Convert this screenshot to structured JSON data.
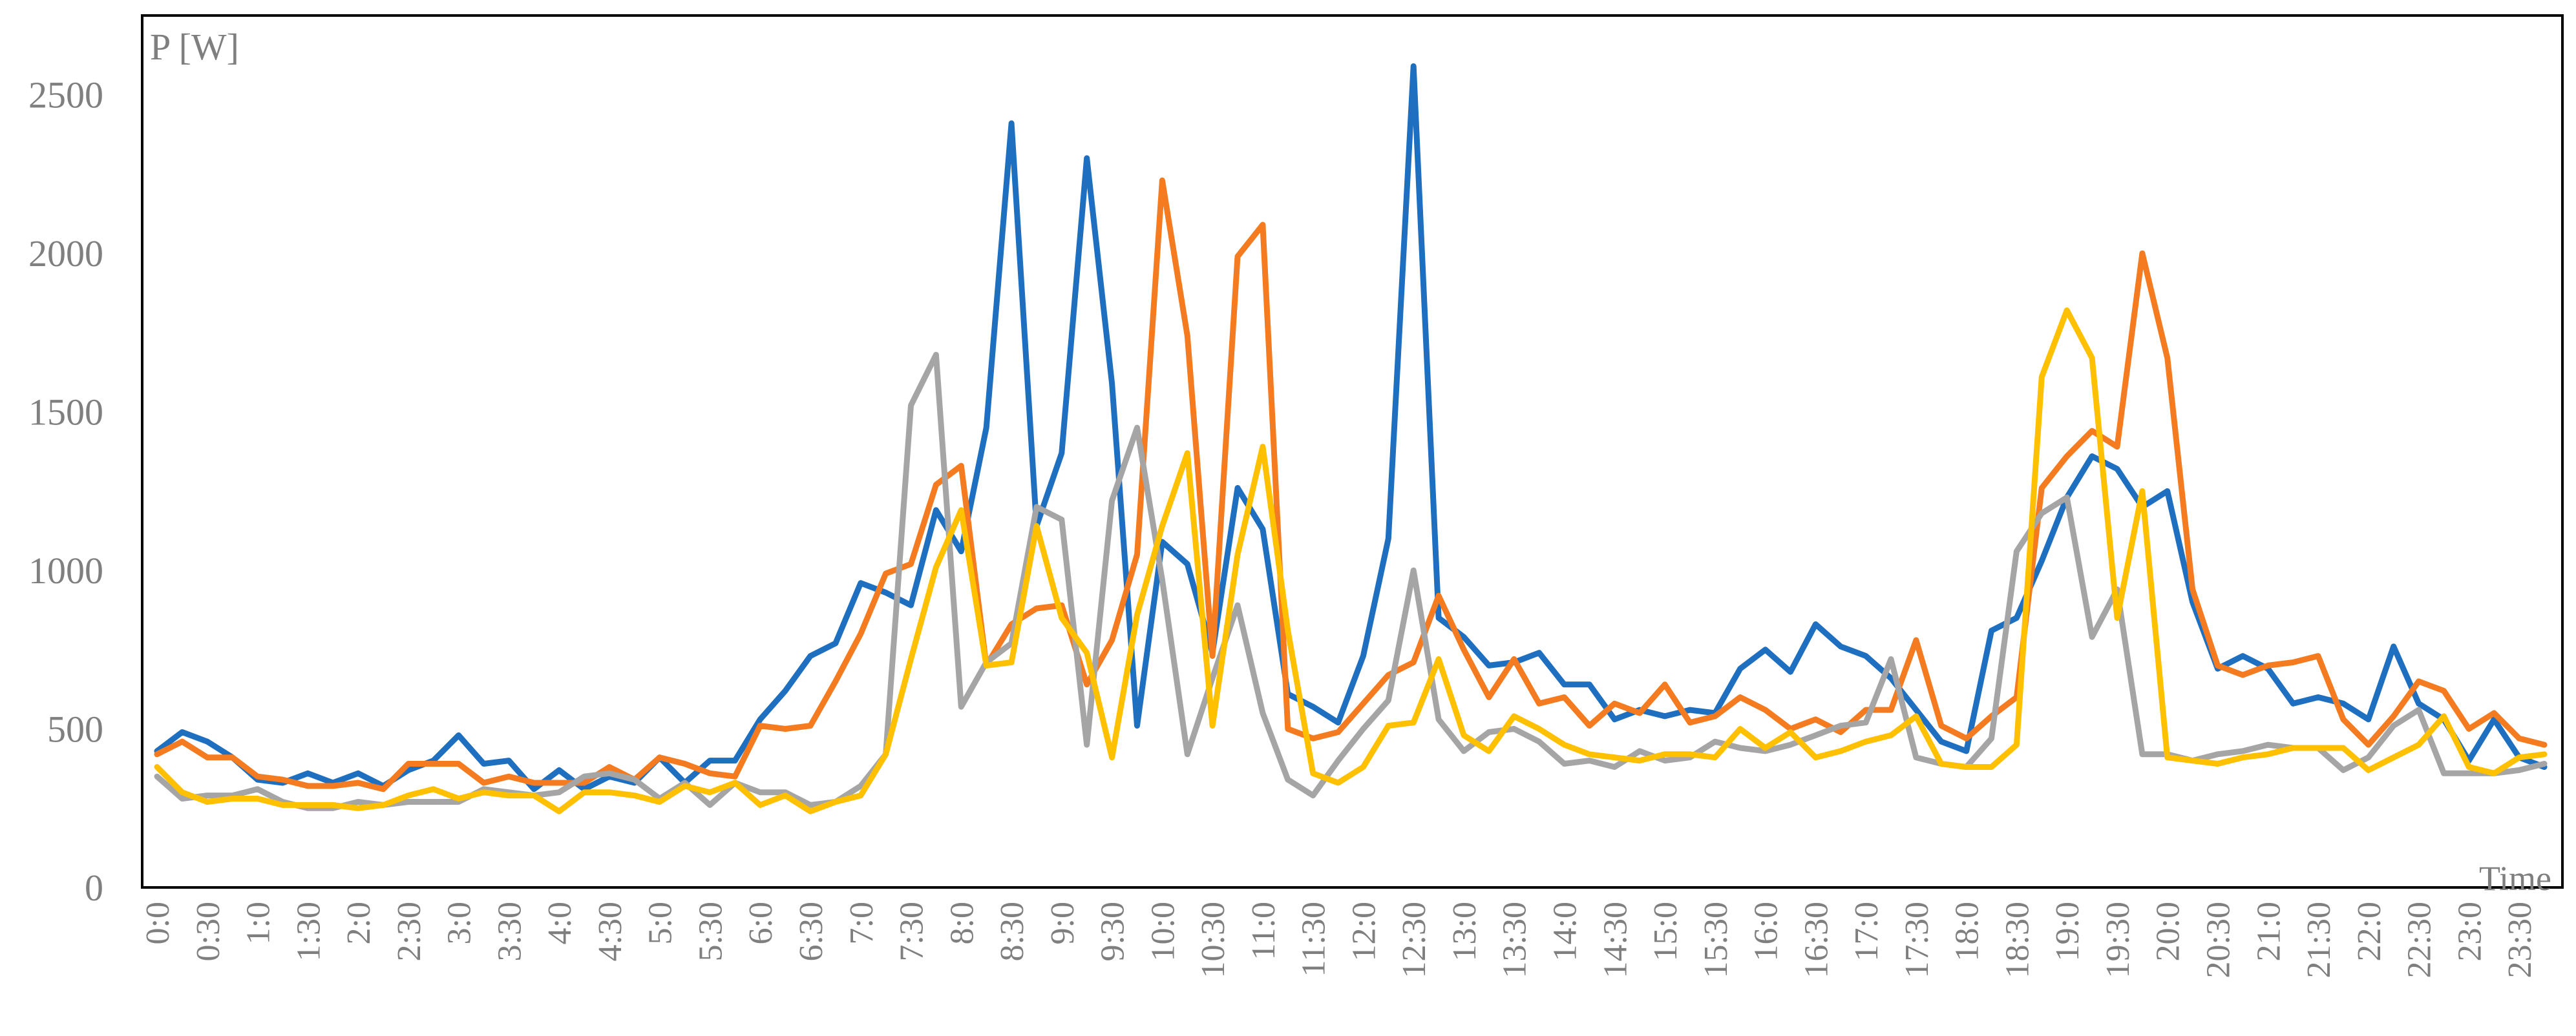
{
  "chart_data": {
    "type": "line",
    "title": "",
    "ylabel": "P [W]",
    "xlabel": "Time",
    "ylim": [
      0,
      2750
    ],
    "yticks": [
      0,
      500,
      1000,
      1500,
      2000,
      2500
    ],
    "grid": false,
    "legend": "none",
    "x": [
      "0:0",
      "0:15",
      "0:30",
      "0:45",
      "1:0",
      "1:15",
      "1:30",
      "1:45",
      "2:0",
      "2:15",
      "2:30",
      "2:45",
      "3:0",
      "3:15",
      "3:30",
      "3:45",
      "4:0",
      "4:15",
      "4:30",
      "4:45",
      "5:0",
      "5:15",
      "5:30",
      "5:45",
      "6:0",
      "6:15",
      "6:30",
      "6:45",
      "7:0",
      "7:15",
      "7:30",
      "7:45",
      "8:0",
      "8:15",
      "8:30",
      "8:45",
      "9:0",
      "9:15",
      "9:30",
      "9:45",
      "10:0",
      "10:15",
      "10:30",
      "10:45",
      "11:0",
      "11:15",
      "11:30",
      "11:45",
      "12:0",
      "12:15",
      "12:30",
      "12:45",
      "13:0",
      "13:15",
      "13:30",
      "13:45",
      "14:0",
      "14:15",
      "14:30",
      "14:45",
      "15:0",
      "15:15",
      "15:30",
      "15:45",
      "16:0",
      "16:15",
      "16:30",
      "16:45",
      "17:0",
      "17:15",
      "17:30",
      "17:45",
      "18:0",
      "18:15",
      "18:30",
      "18:45",
      "19:0",
      "19:15",
      "19:30",
      "19:45",
      "20:0",
      "20:15",
      "20:30",
      "20:45",
      "21:0",
      "21:15",
      "21:30",
      "21:45",
      "22:0",
      "22:15",
      "22:30",
      "22:45",
      "23:0",
      "23:15",
      "23:30",
      "23:45"
    ],
    "xtick_labels": [
      "0:0",
      "0:30",
      "1:0",
      "1:30",
      "2:0",
      "2:30",
      "3:0",
      "3:30",
      "4:0",
      "4:30",
      "5:0",
      "5:30",
      "6:0",
      "6:30",
      "7:0",
      "7:30",
      "8:0",
      "8:30",
      "9:0",
      "9:30",
      "10:0",
      "10:30",
      "11:0",
      "11:30",
      "12:0",
      "12:30",
      "13:0",
      "13:30",
      "14:0",
      "14:30",
      "15:0",
      "15:30",
      "16:0",
      "16:30",
      "17:0",
      "17:30",
      "18:0",
      "18:30",
      "19:0",
      "19:30",
      "20:0",
      "20:30",
      "21:0",
      "21:30",
      "22:0",
      "22:30",
      "23:0",
      "23:30"
    ],
    "series": [
      {
        "color": "#1f6fc0",
        "values": [
          430,
          490,
          460,
          410,
          340,
          330,
          360,
          330,
          360,
          320,
          370,
          400,
          480,
          390,
          400,
          310,
          370,
          310,
          350,
          330,
          410,
          330,
          400,
          400,
          530,
          620,
          730,
          770,
          960,
          930,
          890,
          1190,
          1060,
          1450,
          2410,
          1140,
          1370,
          2300,
          1590,
          510,
          1090,
          1020,
          740,
          1260,
          1130,
          610,
          570,
          520,
          730,
          1100,
          2590,
          850,
          790,
          700,
          710,
          740,
          640,
          640,
          530,
          560,
          540,
          560,
          550,
          690,
          750,
          680,
          830,
          760,
          730,
          660,
          560,
          460,
          430,
          810,
          850,
          1030,
          1230,
          1360,
          1320,
          1200,
          1250,
          900,
          690,
          730,
          690,
          580,
          600,
          580,
          530,
          760,
          580,
          530,
          400,
          530,
          410,
          380
        ]
      },
      {
        "color": "#f47b20",
        "values": [
          420,
          460,
          410,
          410,
          350,
          340,
          320,
          320,
          330,
          310,
          390,
          390,
          390,
          330,
          350,
          330,
          330,
          330,
          380,
          340,
          410,
          390,
          360,
          350,
          510,
          500,
          510,
          650,
          800,
          990,
          1020,
          1270,
          1330,
          700,
          830,
          880,
          890,
          640,
          780,
          1050,
          2230,
          1740,
          730,
          1990,
          2090,
          500,
          470,
          490,
          580,
          670,
          710,
          920,
          750,
          600,
          720,
          580,
          600,
          510,
          580,
          550,
          640,
          520,
          540,
          600,
          560,
          500,
          530,
          490,
          560,
          560,
          780,
          510,
          470,
          540,
          600,
          1260,
          1360,
          1440,
          1390,
          2000,
          1670,
          940,
          700,
          670,
          700,
          710,
          730,
          530,
          450,
          540,
          650,
          620,
          500,
          550,
          470,
          450
        ]
      },
      {
        "color": "#a5a5a5",
        "values": [
          350,
          280,
          290,
          290,
          310,
          270,
          250,
          250,
          270,
          260,
          270,
          270,
          270,
          310,
          300,
          290,
          300,
          350,
          360,
          340,
          280,
          330,
          260,
          330,
          300,
          300,
          260,
          270,
          320,
          420,
          1520,
          1680,
          570,
          710,
          770,
          1200,
          1160,
          450,
          1220,
          1450,
          970,
          420,
          660,
          890,
          550,
          340,
          290,
          400,
          500,
          590,
          1000,
          530,
          430,
          490,
          500,
          460,
          390,
          400,
          380,
          430,
          400,
          410,
          460,
          440,
          430,
          450,
          480,
          510,
          520,
          720,
          410,
          390,
          380,
          470,
          1060,
          1180,
          1230,
          790,
          940,
          420,
          420,
          400,
          420,
          430,
          450,
          440,
          440,
          370,
          410,
          510,
          560,
          360,
          360,
          360,
          370,
          390
        ]
      },
      {
        "color": "#ffc000",
        "values": [
          380,
          300,
          270,
          280,
          280,
          260,
          260,
          260,
          250,
          260,
          290,
          310,
          280,
          300,
          290,
          290,
          240,
          300,
          300,
          290,
          270,
          320,
          300,
          330,
          260,
          290,
          240,
          270,
          290,
          420,
          720,
          1010,
          1190,
          700,
          710,
          1140,
          850,
          740,
          410,
          860,
          1140,
          1370,
          510,
          1050,
          1390,
          810,
          360,
          330,
          380,
          510,
          520,
          720,
          480,
          430,
          540,
          500,
          450,
          420,
          410,
          400,
          420,
          420,
          410,
          500,
          440,
          490,
          410,
          430,
          460,
          480,
          540,
          390,
          380,
          380,
          450,
          1610,
          1820,
          1670,
          850,
          1250,
          410,
          400,
          390,
          410,
          420,
          440,
          440,
          440,
          370,
          410,
          450,
          540,
          380,
          360,
          410,
          420
        ]
      }
    ]
  }
}
